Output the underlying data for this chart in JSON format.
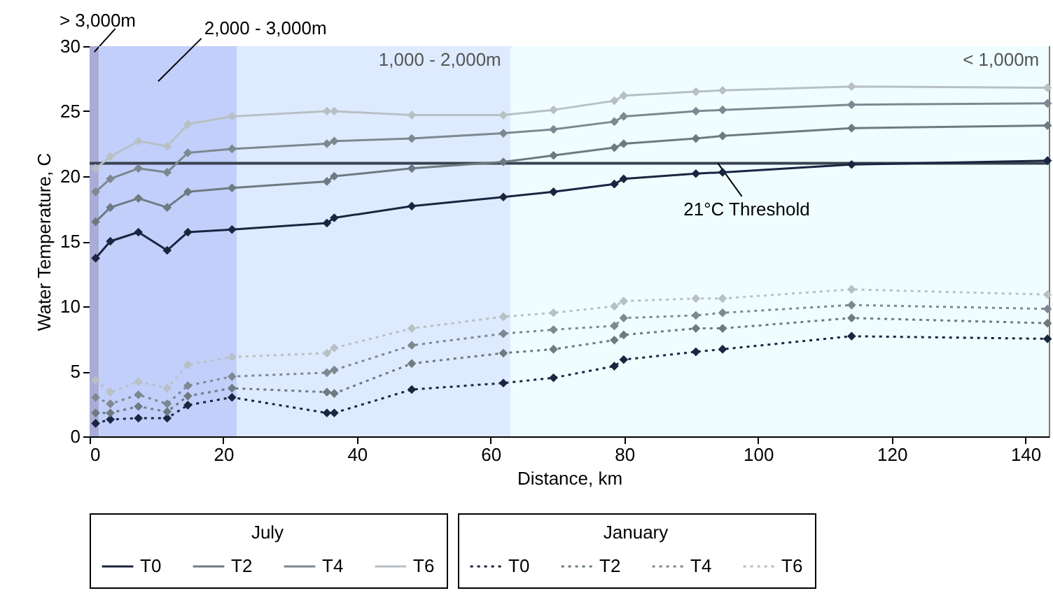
{
  "chart_data": {
    "type": "line",
    "xlabel": "Distance, km",
    "ylabel": "Water Temperature, C",
    "x": [
      0.9,
      3.1,
      7.3,
      11.6,
      14.7,
      21.3,
      35.5,
      36.6,
      48.2,
      61.9,
      69.4,
      78.5,
      79.9,
      90.7,
      94.7,
      114,
      143.3
    ],
    "xlim": [
      0,
      143.5
    ],
    "xticks": [
      0,
      20,
      40,
      60,
      80,
      100,
      120,
      140
    ],
    "ylim": [
      0,
      30
    ],
    "yticks": [
      0,
      5,
      10,
      15,
      20,
      25,
      30
    ],
    "grid": false,
    "marker": "diamond",
    "legend": "bottom",
    "legend_title": [
      "July",
      "January"
    ],
    "series": [
      {
        "name": "T0",
        "color": "#1a2540",
        "line_style": "solid",
        "values": [
          13.7,
          15.0,
          15.7,
          14.3,
          15.7,
          15.9,
          16.4,
          16.8,
          17.7,
          18.4,
          18.8,
          19.4,
          19.8,
          20.2,
          20.3,
          20.9,
          21.2
        ]
      },
      {
        "name": "T2",
        "color": "#6e7a80",
        "line_style": "solid",
        "values": [
          16.5,
          17.6,
          18.3,
          17.6,
          18.8,
          19.1,
          19.6,
          20.0,
          20.6,
          21.1,
          21.6,
          22.2,
          22.5,
          22.9,
          23.1,
          23.7,
          23.9
        ]
      },
      {
        "name": "T4",
        "color": "#7d8890",
        "line_style": "solid",
        "values": [
          18.8,
          19.8,
          20.6,
          20.3,
          21.8,
          22.1,
          22.5,
          22.7,
          22.9,
          23.3,
          23.6,
          24.2,
          24.6,
          25.0,
          25.1,
          25.5,
          25.6
        ]
      },
      {
        "name": "T6",
        "color": "#b8c0c4",
        "line_style": "solid",
        "values": [
          20.6,
          21.5,
          22.7,
          22.3,
          24.0,
          24.6,
          25.0,
          25.0,
          24.7,
          24.7,
          25.1,
          25.8,
          26.2,
          26.5,
          26.6,
          26.9,
          26.8
        ]
      },
      {
        "name": "T0",
        "color": "#1a2540",
        "line_style": "dotted",
        "values": [
          1.0,
          1.3,
          1.4,
          1.4,
          2.4,
          3.0,
          1.8,
          1.8,
          3.6,
          4.1,
          4.5,
          5.4,
          5.9,
          6.5,
          6.7,
          7.7,
          7.5
        ]
      },
      {
        "name": "T2",
        "color": "#6e7a80",
        "line_style": "dotted",
        "values": [
          1.8,
          1.8,
          2.3,
          1.9,
          3.1,
          3.7,
          3.4,
          3.3,
          5.6,
          6.4,
          6.7,
          7.4,
          7.8,
          8.3,
          8.3,
          9.1,
          8.7
        ]
      },
      {
        "name": "T4",
        "color": "#7d8890",
        "line_style": "dotted",
        "values": [
          3.0,
          2.5,
          3.2,
          2.5,
          3.9,
          4.6,
          4.9,
          5.1,
          7.0,
          7.9,
          8.2,
          8.5,
          9.1,
          9.3,
          9.5,
          10.1,
          9.8
        ]
      },
      {
        "name": "T6",
        "color": "#b8c0c4",
        "line_style": "dotted",
        "values": [
          4.3,
          3.4,
          4.2,
          3.7,
          5.5,
          6.1,
          6.4,
          6.8,
          8.3,
          9.2,
          9.5,
          10.0,
          10.4,
          10.6,
          10.6,
          11.3,
          10.9
        ]
      }
    ],
    "ref_lines": [
      {
        "axis": "y",
        "value": 21,
        "label": "21°C Threshold",
        "color": "#3a4250"
      }
    ],
    "bands": [
      {
        "axis": "x",
        "from": 0,
        "to": 1.4,
        "label": "> 3,000m",
        "color": "#a9acd6"
      },
      {
        "axis": "x",
        "from": 1.4,
        "to": 22,
        "label": "2,000 - 3,000m",
        "color": "#c2cffa"
      },
      {
        "axis": "x",
        "from": 22,
        "to": 63,
        "label": "1,000 - 2,000m",
        "color": "#deebff"
      },
      {
        "axis": "x",
        "from": 63,
        "to": 143.5,
        "label": "< 1,000m",
        "color": "#effdff"
      }
    ]
  }
}
